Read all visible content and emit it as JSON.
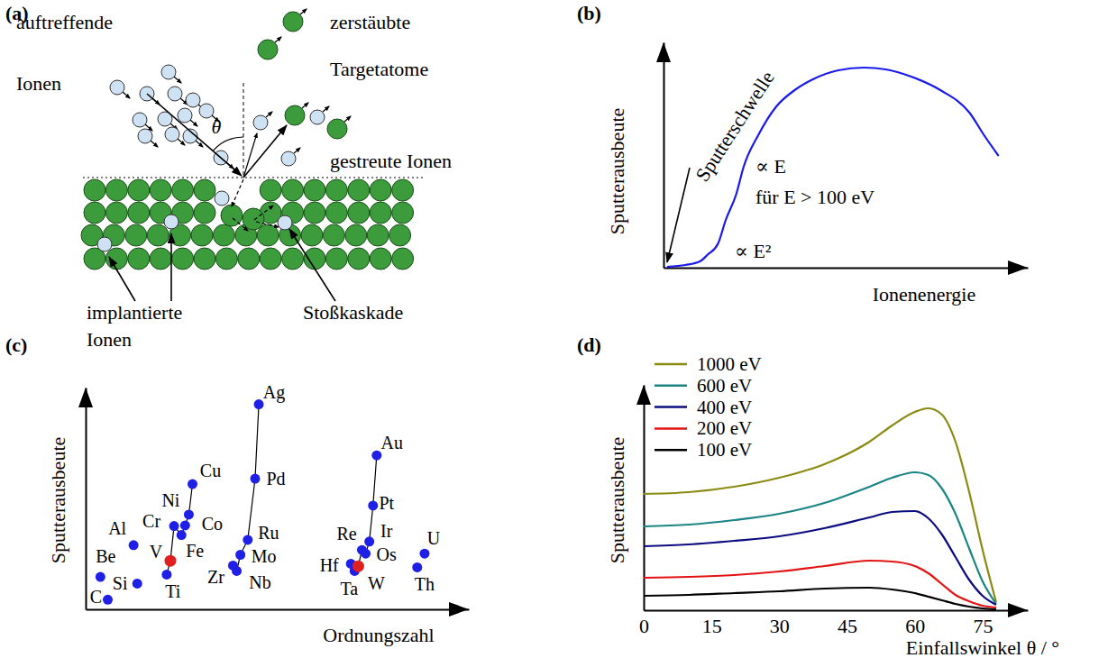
{
  "diagram": {
    "label": "(a)",
    "incident_ions": "auftreffende Ionen",
    "sputtered_atoms": "zerstäubte Targetatome",
    "scattered_ions": "gestreute Ionen",
    "implanted_ions": "implantierte Ionen",
    "collision_cascade": "Stoßkaskade",
    "angle": "θ"
  },
  "chart_data": [
    {
      "label": "(b)",
      "type": "line",
      "x_label": "Ionenenergie",
      "y_label": "Sputterausbeute",
      "x": [
        1,
        6,
        10,
        12,
        15,
        17,
        20,
        22,
        26,
        31,
        36,
        41,
        48,
        55,
        61,
        68,
        76,
        84,
        88,
        92
      ],
      "values": [
        0.4,
        1.2,
        2.8,
        5.6,
        10.8,
        20.8,
        32.8,
        44.8,
        58.8,
        71.6,
        78.8,
        83.6,
        87.6,
        88.8,
        88,
        84.8,
        78.8,
        68.8,
        58.8,
        49.6
      ],
      "color": "#1a1aeb",
      "xlim": [
        0,
        100
      ],
      "ylim": [
        0,
        100
      ],
      "tick_labels": false,
      "annotations": [
        "Sputterschwelle",
        "∝ E",
        "für E > 100 eV",
        "∝ E²"
      ]
    },
    {
      "label": "(c)",
      "type": "scatter",
      "x_label": "Ordnungszahl",
      "y_label": "Sputterausbeute",
      "xlim": [
        0,
        104
      ],
      "ylim": [
        0,
        3.7
      ],
      "tick_labels": false,
      "series": [
        {
          "type": "scatter",
          "marker": "circle",
          "line_style": "none",
          "labels": [
            "Be",
            "C",
            "Al",
            "Si",
            "Th",
            "U"
          ],
          "x": [
            4,
            6,
            13,
            14,
            90,
            92
          ],
          "values": [
            0.54,
            0.16,
            1.07,
            0.43,
            0.7,
            0.93
          ],
          "colors": [
            "#1f1fe6",
            "#1f1fe6",
            "#1f1fe6",
            "#1f1fe6",
            "#1f1fe6",
            "#1f1fe6"
          ]
        },
        {
          "type": "scatter",
          "marker": "circle",
          "line_style": "solid",
          "labels": [
            "Ti",
            "V",
            "Cr",
            "Fe",
            "Co",
            "Ni",
            "Cu"
          ],
          "x": [
            22,
            23,
            24,
            26,
            27,
            28,
            29
          ],
          "values": [
            0.58,
            0.81,
            1.39,
            1.24,
            1.4,
            1.58,
            2.09
          ],
          "colors": [
            "#1f1fe6",
            "#e01f1f",
            "#1f1fe6",
            "#1f1fe6",
            "#1f1fe6",
            "#1f1fe6",
            "#1f1fe6"
          ]
        },
        {
          "type": "scatter",
          "marker": "circle",
          "line_style": "solid",
          "labels": [
            "Zr",
            "Nb",
            "Mo",
            "Ru",
            "Pd",
            "Ag"
          ],
          "x": [
            40,
            41,
            42,
            44,
            46,
            47
          ],
          "values": [
            0.73,
            0.64,
            0.91,
            1.16,
            2.18,
            3.42
          ],
          "colors": [
            "#1f1fe6",
            "#1f1fe6",
            "#1f1fe6",
            "#1f1fe6",
            "#1f1fe6",
            "#1f1fe6"
          ]
        },
        {
          "type": "scatter",
          "marker": "circle",
          "line_style": "solid",
          "labels": [
            "Hf",
            "Ta",
            "W",
            "Re",
            "Os",
            "Ir",
            "Pt",
            "Au"
          ],
          "x": [
            72,
            73,
            74,
            75,
            76,
            77,
            78,
            79
          ],
          "values": [
            0.76,
            0.64,
            0.72,
            0.99,
            0.93,
            1.13,
            1.73,
            2.57
          ],
          "colors": [
            "#1f1fe6",
            "#1f1fe6",
            "#e01f1f",
            "#1f1fe6",
            "#1f1fe6",
            "#1f1fe6",
            "#1f1fe6",
            "#1f1fe6"
          ]
        }
      ]
    },
    {
      "label": "(d)",
      "type": "line",
      "x_label": "Einfallswinkel θ / °",
      "y_label": "Sputterausbeute",
      "x": [
        0,
        10,
        20,
        30,
        40,
        50,
        55,
        60,
        63,
        66,
        69,
        72,
        75,
        78
      ],
      "xlim": [
        0,
        85
      ],
      "ylim": [
        0,
        2.5
      ],
      "xticks": [
        0,
        15,
        30,
        45,
        60,
        75
      ],
      "tick_labels": "x",
      "legend": "upper left",
      "series": [
        {
          "name": "1000 eV",
          "color": "#8b8b14",
          "values": [
            1.29,
            1.31,
            1.37,
            1.47,
            1.62,
            1.87,
            2.05,
            2.2,
            2.24,
            2.17,
            1.87,
            1.32,
            0.67,
            0.09
          ]
        },
        {
          "name": "600 eV",
          "color": "#1b8585",
          "values": [
            0.93,
            0.95,
            1.0,
            1.07,
            1.19,
            1.37,
            1.47,
            1.53,
            1.5,
            1.35,
            1.07,
            0.69,
            0.32,
            0.07
          ]
        },
        {
          "name": "400 eV",
          "color": "#0c0c80",
          "values": [
            0.71,
            0.73,
            0.77,
            0.82,
            0.91,
            1.03,
            1.09,
            1.1,
            1.02,
            0.84,
            0.59,
            0.34,
            0.16,
            0.06
          ]
        },
        {
          "name": "200 eV",
          "color": "#e31414",
          "values": [
            0.36,
            0.37,
            0.39,
            0.43,
            0.49,
            0.55,
            0.54,
            0.49,
            0.41,
            0.29,
            0.17,
            0.1,
            0.05,
            0.03
          ]
        },
        {
          "name": "100 eV",
          "color": "#000000",
          "values": [
            0.16,
            0.17,
            0.19,
            0.21,
            0.24,
            0.25,
            0.23,
            0.19,
            0.15,
            0.11,
            0.07,
            0.04,
            0.02,
            0.01
          ]
        }
      ]
    }
  ]
}
